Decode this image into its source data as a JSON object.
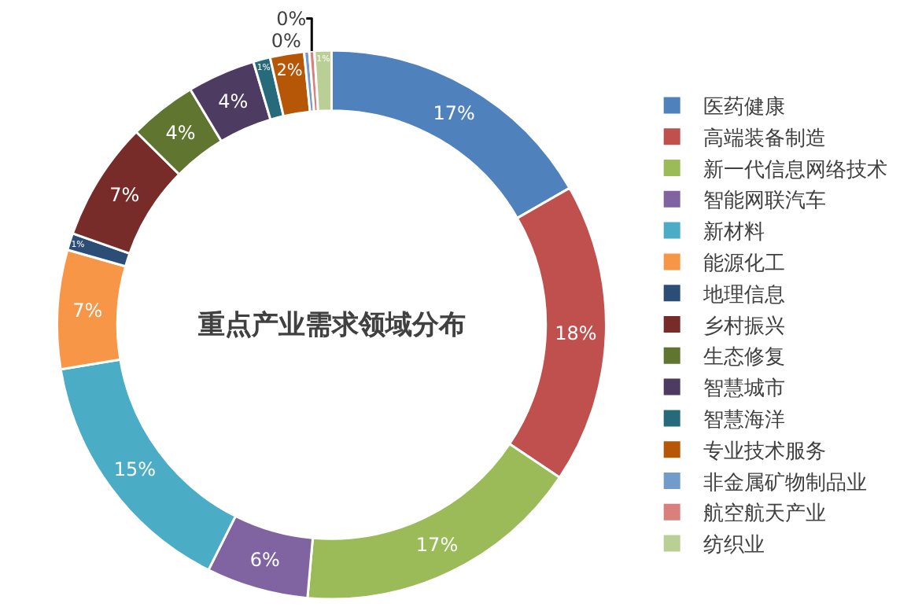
{
  "chart_data": {
    "type": "donut",
    "title": "重点产业需求领域分布",
    "categories": [
      "医药健康",
      "高端装备制造",
      "新一代信息网络技术",
      "智能网联汽车",
      "新材料",
      "能源化工",
      "地理信息",
      "乡村振兴",
      "生态修复",
      "智慧城市",
      "智慧海洋",
      "专业技术服务",
      "非金属矿物制品业",
      "航空航天产业",
      "纺织业"
    ],
    "values": [
      16.7,
      17.7,
      17,
      6,
      15,
      7,
      1,
      7,
      4,
      4,
      1,
      2,
      0.3,
      0.3,
      1
    ],
    "value_labels": [
      "17%",
      "18%",
      "17%",
      "6%",
      "15%",
      "7%",
      "1%",
      "7%",
      "4%",
      "4%",
      "1%",
      "2%",
      "0%",
      "0%",
      "1%"
    ],
    "colors": [
      "#4f81bd",
      "#c0504d",
      "#9bbb59",
      "#8064a2",
      "#4bacc6",
      "#f79646",
      "#2c4d75",
      "#772c2a",
      "#5f7530",
      "#4d3b62",
      "#276a7c",
      "#b65708",
      "#729aca",
      "#d9807c",
      "#b9cf96"
    ],
    "legend": "right"
  }
}
